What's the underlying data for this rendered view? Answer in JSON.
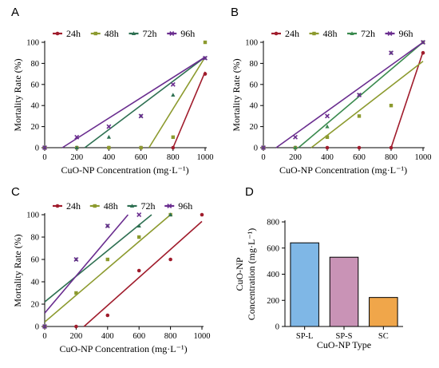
{
  "chart_data": [
    {
      "panel": "A",
      "type": "scatter",
      "xlabel": "CuO-NP Concentration (mg·L⁻¹)",
      "ylabel": "Mortality Rate (%)",
      "xlim": [
        0,
        1000
      ],
      "ylim": [
        0,
        100
      ],
      "xticks": [
        0,
        200,
        400,
        600,
        800,
        1000
      ],
      "yticks": [
        0,
        20,
        40,
        60,
        80,
        100
      ],
      "legend": "top",
      "series": [
        {
          "name": "24h",
          "color": "#a01c2c",
          "marker": "circle",
          "points": [
            [
              0,
              0
            ],
            [
              200,
              0
            ],
            [
              400,
              0
            ],
            [
              600,
              0
            ],
            [
              800,
              0
            ],
            [
              1000,
              70
            ]
          ],
          "fit": [
            [
              800,
              0
            ],
            [
              1000,
              72
            ]
          ]
        },
        {
          "name": "48h",
          "color": "#8c9a2e",
          "marker": "square",
          "points": [
            [
              0,
              0
            ],
            [
              200,
              0
            ],
            [
              400,
              0
            ],
            [
              600,
              0
            ],
            [
              800,
              10
            ],
            [
              1000,
              100
            ]
          ],
          "fit": [
            [
              650,
              0
            ],
            [
              1000,
              86
            ]
          ]
        },
        {
          "name": "72h",
          "color": "#2e7052",
          "marker": "triangle",
          "points": [
            [
              0,
              0
            ],
            [
              200,
              0
            ],
            [
              400,
              10
            ],
            [
              600,
              30
            ],
            [
              800,
              50
            ],
            [
              1000,
              85
            ]
          ],
          "fit": [
            [
              250,
              0
            ],
            [
              1000,
              86
            ]
          ]
        },
        {
          "name": "96h",
          "color": "#6a2d8f",
          "marker": "cross",
          "points": [
            [
              0,
              0
            ],
            [
              200,
              10
            ],
            [
              400,
              20
            ],
            [
              600,
              30
            ],
            [
              800,
              60
            ],
            [
              1000,
              85
            ]
          ],
          "fit": [
            [
              110,
              0
            ],
            [
              1000,
              86
            ]
          ]
        }
      ]
    },
    {
      "panel": "B",
      "type": "scatter",
      "xlabel": "CuO-NP Concentration (mg·L⁻¹)",
      "ylabel": "Mortality Rate (%)",
      "xlim": [
        0,
        1000
      ],
      "ylim": [
        0,
        100
      ],
      "xticks": [
        0,
        200,
        400,
        600,
        800,
        1000
      ],
      "yticks": [
        0,
        20,
        40,
        60,
        80,
        100
      ],
      "legend": "top",
      "series": [
        {
          "name": "24h",
          "color": "#a01c2c",
          "marker": "circle",
          "points": [
            [
              0,
              0
            ],
            [
              200,
              0
            ],
            [
              400,
              0
            ],
            [
              600,
              0
            ],
            [
              800,
              0
            ],
            [
              1000,
              90
            ]
          ],
          "fit": [
            [
              800,
              0
            ],
            [
              1000,
              91
            ]
          ]
        },
        {
          "name": "48h",
          "color": "#8c9a2e",
          "marker": "square",
          "points": [
            [
              0,
              0
            ],
            [
              200,
              0
            ],
            [
              400,
              10
            ],
            [
              600,
              30
            ],
            [
              800,
              40
            ],
            [
              1000,
              100
            ]
          ],
          "fit": [
            [
              300,
              0
            ],
            [
              1000,
              82
            ]
          ]
        },
        {
          "name": "72h",
          "color": "#3a8a4e",
          "marker": "triangle",
          "points": [
            [
              0,
              0
            ],
            [
              200,
              0
            ],
            [
              400,
              20
            ],
            [
              600,
              50
            ],
            [
              800,
              90
            ],
            [
              1000,
              100
            ]
          ],
          "fit": [
            [
              220,
              0
            ],
            [
              1000,
              100
            ]
          ]
        },
        {
          "name": "96h",
          "color": "#6a2d8f",
          "marker": "cross",
          "points": [
            [
              0,
              0
            ],
            [
              200,
              10
            ],
            [
              400,
              30
            ],
            [
              600,
              50
            ],
            [
              800,
              90
            ],
            [
              1000,
              100
            ]
          ],
          "fit": [
            [
              80,
              0
            ],
            [
              1000,
              100
            ]
          ]
        }
      ]
    },
    {
      "panel": "C",
      "type": "scatter",
      "xlabel": "CuO-NP Concentration (mg·L⁻¹)",
      "ylabel": "Mortality Rate (%)",
      "xlim": [
        0,
        1000
      ],
      "ylim": [
        0,
        100
      ],
      "xticks": [
        0,
        200,
        400,
        600,
        800,
        1000
      ],
      "yticks": [
        0,
        20,
        40,
        60,
        80,
        100
      ],
      "legend": "top",
      "series": [
        {
          "name": "24h",
          "color": "#a01c2c",
          "marker": "circle",
          "points": [
            [
              0,
              0
            ],
            [
              200,
              0
            ],
            [
              400,
              10
            ],
            [
              600,
              50
            ],
            [
              800,
              60
            ],
            [
              1000,
              100
            ]
          ],
          "fit": [
            [
              250,
              0
            ],
            [
              1000,
              94
            ]
          ]
        },
        {
          "name": "48h",
          "color": "#8c9a2e",
          "marker": "square",
          "points": [
            [
              0,
              0
            ],
            [
              200,
              30
            ],
            [
              400,
              60
            ],
            [
              600,
              80
            ],
            [
              800,
              100
            ]
          ],
          "fit": [
            [
              0,
              4
            ],
            [
              800,
              100
            ]
          ]
        },
        {
          "name": "72h",
          "color": "#2e7052",
          "marker": "triangle",
          "points": [
            [
              0,
              0
            ],
            [
              200,
              60
            ],
            [
              400,
              90
            ],
            [
              600,
              90
            ],
            [
              800,
              100
            ]
          ],
          "fit": [
            [
              0,
              22
            ],
            [
              680,
              100
            ]
          ]
        },
        {
          "name": "96h",
          "color": "#6a2d8f",
          "marker": "cross",
          "points": [
            [
              0,
              0
            ],
            [
              200,
              60
            ],
            [
              400,
              90
            ],
            [
              600,
              100
            ]
          ],
          "fit": [
            [
              0,
              12
            ],
            [
              530,
              100
            ]
          ]
        }
      ]
    },
    {
      "panel": "D",
      "type": "bar",
      "xlabel": "CuO-NP Type",
      "ylabel": "CuO-NP Concentration (mg·L⁻¹)",
      "categories": [
        "SP-L",
        "SP-S",
        "SC"
      ],
      "values": [
        640,
        530,
        222
      ],
      "colors": [
        "#7fb7e6",
        "#c993b6",
        "#f0a64a"
      ],
      "ylim": [
        0,
        800
      ],
      "yticks": [
        0,
        200,
        400,
        600,
        800
      ]
    }
  ]
}
